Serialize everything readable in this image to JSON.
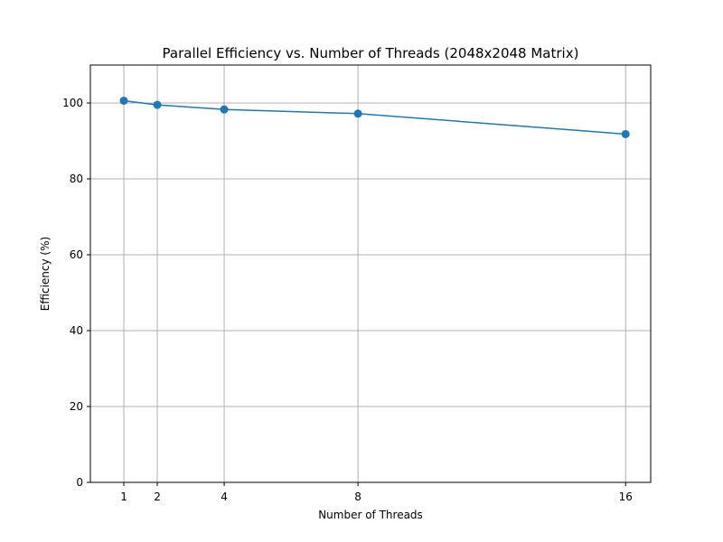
{
  "chart_data": {
    "type": "line",
    "title": "Parallel Efficiency vs. Number of Threads (2048x2048 Matrix)",
    "xlabel": "Number of Threads",
    "ylabel": "Efficiency (%)",
    "xlim": [
      0.0,
      16.75
    ],
    "ylim": [
      0,
      110
    ],
    "xticks": [
      1,
      2,
      4,
      8,
      16
    ],
    "xtick_labels": [
      "1",
      "2",
      "4",
      "8",
      "16"
    ],
    "yticks": [
      0,
      20,
      40,
      60,
      80,
      100
    ],
    "ytick_labels": [
      "0",
      "20",
      "40",
      "60",
      "80",
      "100"
    ],
    "grid": true,
    "series": [
      {
        "x": [
          1,
          2,
          4,
          8,
          16
        ],
        "values": [
          100.6,
          99.5,
          98.3,
          97.2,
          91.8
        ],
        "color": "#1f77b4",
        "marker": "circle"
      }
    ]
  }
}
